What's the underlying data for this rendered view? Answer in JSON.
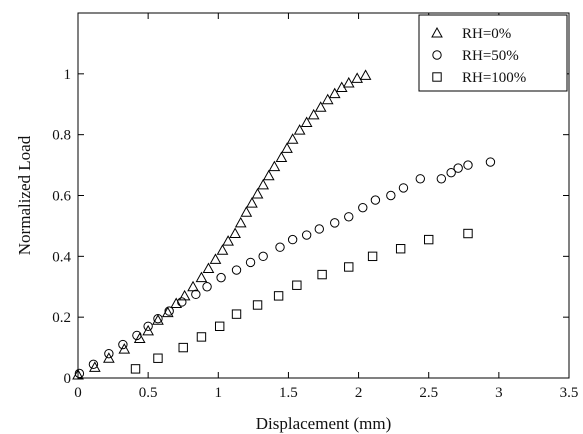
{
  "chart_data": {
    "type": "scatter",
    "xlabel": "Displacement (mm)",
    "ylabel": "Normalized Load",
    "xlim": [
      0,
      3.5
    ],
    "ylim": [
      0,
      1.2
    ],
    "xticks": [
      0,
      0.5,
      1,
      1.5,
      2,
      2.5,
      3,
      3.5
    ],
    "xtick_labels": [
      "0",
      "0.5",
      "1",
      "1.5",
      "2",
      "2.5",
      "3",
      "3.5"
    ],
    "yticks": [
      0,
      0.2,
      0.4,
      0.6,
      0.8,
      1
    ],
    "ytick_labels": [
      "0",
      "0.2",
      "0.4",
      "0.6",
      "0.8",
      "1"
    ],
    "grid": false,
    "legend_position": "top-right",
    "series": [
      {
        "name": "RH=0%",
        "marker": "triangle",
        "points": [
          [
            0.0,
            0.01
          ],
          [
            0.12,
            0.035
          ],
          [
            0.22,
            0.065
          ],
          [
            0.33,
            0.095
          ],
          [
            0.44,
            0.13
          ],
          [
            0.5,
            0.155
          ],
          [
            0.57,
            0.19
          ],
          [
            0.64,
            0.215
          ],
          [
            0.7,
            0.245
          ],
          [
            0.76,
            0.27
          ],
          [
            0.82,
            0.3
          ],
          [
            0.88,
            0.33
          ],
          [
            0.93,
            0.36
          ],
          [
            0.98,
            0.39
          ],
          [
            1.03,
            0.42
          ],
          [
            1.07,
            0.45
          ],
          [
            1.12,
            0.475
          ],
          [
            1.16,
            0.51
          ],
          [
            1.2,
            0.545
          ],
          [
            1.24,
            0.575
          ],
          [
            1.28,
            0.605
          ],
          [
            1.32,
            0.635
          ],
          [
            1.36,
            0.665
          ],
          [
            1.4,
            0.695
          ],
          [
            1.45,
            0.725
          ],
          [
            1.49,
            0.755
          ],
          [
            1.53,
            0.785
          ],
          [
            1.58,
            0.815
          ],
          [
            1.63,
            0.84
          ],
          [
            1.68,
            0.865
          ],
          [
            1.73,
            0.89
          ],
          [
            1.78,
            0.915
          ],
          [
            1.83,
            0.935
          ],
          [
            1.88,
            0.955
          ],
          [
            1.93,
            0.97
          ],
          [
            1.99,
            0.985
          ],
          [
            2.05,
            0.995
          ]
        ]
      },
      {
        "name": "RH=50%",
        "marker": "circle",
        "points": [
          [
            0.01,
            0.015
          ],
          [
            0.11,
            0.045
          ],
          [
            0.22,
            0.08
          ],
          [
            0.32,
            0.11
          ],
          [
            0.42,
            0.14
          ],
          [
            0.5,
            0.17
          ],
          [
            0.57,
            0.195
          ],
          [
            0.65,
            0.22
          ],
          [
            0.74,
            0.25
          ],
          [
            0.84,
            0.275
          ],
          [
            0.92,
            0.3
          ],
          [
            1.02,
            0.33
          ],
          [
            1.13,
            0.355
          ],
          [
            1.23,
            0.38
          ],
          [
            1.32,
            0.4
          ],
          [
            1.44,
            0.43
          ],
          [
            1.53,
            0.455
          ],
          [
            1.63,
            0.47
          ],
          [
            1.72,
            0.49
          ],
          [
            1.83,
            0.51
          ],
          [
            1.93,
            0.53
          ],
          [
            2.03,
            0.56
          ],
          [
            2.12,
            0.585
          ],
          [
            2.23,
            0.6
          ],
          [
            2.32,
            0.625
          ],
          [
            2.44,
            0.655
          ],
          [
            2.59,
            0.655
          ],
          [
            2.66,
            0.675
          ],
          [
            2.71,
            0.69
          ],
          [
            2.78,
            0.7
          ],
          [
            2.94,
            0.71
          ]
        ]
      },
      {
        "name": "RH=100%",
        "marker": "square",
        "points": [
          [
            0.41,
            0.03
          ],
          [
            0.57,
            0.065
          ],
          [
            0.75,
            0.1
          ],
          [
            0.88,
            0.135
          ],
          [
            1.01,
            0.17
          ],
          [
            1.13,
            0.21
          ],
          [
            1.28,
            0.24
          ],
          [
            1.43,
            0.27
          ],
          [
            1.56,
            0.305
          ],
          [
            1.74,
            0.34
          ],
          [
            1.93,
            0.365
          ],
          [
            2.1,
            0.4
          ],
          [
            2.3,
            0.425
          ],
          [
            2.5,
            0.455
          ],
          [
            2.78,
            0.475
          ]
        ]
      }
    ]
  }
}
